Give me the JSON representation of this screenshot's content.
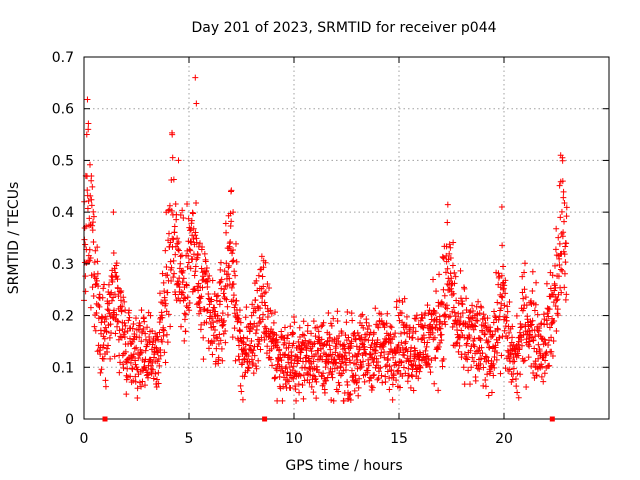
{
  "chart_data": {
    "type": "scatter",
    "title": "Day 201 of 2023, SRMTID for receiver p044",
    "xlabel": "GPS time / hours",
    "ylabel": "SRMTID / TECUs",
    "xlim": [
      0,
      25
    ],
    "ylim": [
      0,
      0.7
    ],
    "x_ticks": [
      0,
      5,
      10,
      15,
      20
    ],
    "x_tick_labels": [
      "0",
      "5",
      "10",
      "15",
      "20"
    ],
    "y_ticks": [
      0,
      0.1,
      0.2,
      0.3,
      0.4,
      0.5,
      0.6,
      0.7
    ],
    "y_tick_labels": [
      "0",
      "0.1",
      "0.2",
      "0.3",
      "0.4",
      "0.5",
      "0.6",
      "0.7"
    ],
    "grid": true,
    "marker": "plus",
    "color": "#ff0000",
    "x_range_hours": [
      0,
      23
    ],
    "profile": [
      [
        0.0,
        0.28
      ],
      [
        0.15,
        0.45
      ],
      [
        0.3,
        0.36
      ],
      [
        0.5,
        0.28
      ],
      [
        0.7,
        0.19
      ],
      [
        1.0,
        0.15
      ],
      [
        1.3,
        0.24
      ],
      [
        1.6,
        0.22
      ],
      [
        2.0,
        0.15
      ],
      [
        2.4,
        0.14
      ],
      [
        2.8,
        0.13
      ],
      [
        3.2,
        0.14
      ],
      [
        3.5,
        0.12
      ],
      [
        3.8,
        0.2
      ],
      [
        4.2,
        0.4
      ],
      [
        4.5,
        0.28
      ],
      [
        4.8,
        0.27
      ],
      [
        5.2,
        0.33
      ],
      [
        5.5,
        0.25
      ],
      [
        5.8,
        0.22
      ],
      [
        6.2,
        0.17
      ],
      [
        6.6,
        0.2
      ],
      [
        7.0,
        0.35
      ],
      [
        7.3,
        0.17
      ],
      [
        7.6,
        0.12
      ],
      [
        8.0,
        0.15
      ],
      [
        8.4,
        0.22
      ],
      [
        8.8,
        0.18
      ],
      [
        9.2,
        0.12
      ],
      [
        9.8,
        0.11
      ],
      [
        10.5,
        0.12
      ],
      [
        11.0,
        0.13
      ],
      [
        11.5,
        0.12
      ],
      [
        12.0,
        0.11
      ],
      [
        12.5,
        0.12
      ],
      [
        13.0,
        0.12
      ],
      [
        13.5,
        0.13
      ],
      [
        14.0,
        0.13
      ],
      [
        14.5,
        0.14
      ],
      [
        15.0,
        0.15
      ],
      [
        15.5,
        0.14
      ],
      [
        16.0,
        0.14
      ],
      [
        16.5,
        0.16
      ],
      [
        17.0,
        0.2
      ],
      [
        17.4,
        0.28
      ],
      [
        17.8,
        0.17
      ],
      [
        18.2,
        0.16
      ],
      [
        18.6,
        0.15
      ],
      [
        19.0,
        0.14
      ],
      [
        19.5,
        0.14
      ],
      [
        19.9,
        0.24
      ],
      [
        20.2,
        0.14
      ],
      [
        20.6,
        0.11
      ],
      [
        21.0,
        0.2
      ],
      [
        21.4,
        0.17
      ],
      [
        21.8,
        0.14
      ],
      [
        22.2,
        0.18
      ],
      [
        22.5,
        0.26
      ],
      [
        22.8,
        0.38
      ],
      [
        23.0,
        0.3
      ]
    ],
    "peaks": [
      [
        0.2,
        0.56
      ],
      [
        0.35,
        0.47
      ],
      [
        1.4,
        0.4
      ],
      [
        4.2,
        0.55
      ],
      [
        4.5,
        0.5
      ],
      [
        5.3,
        0.66
      ],
      [
        5.35,
        0.61
      ],
      [
        7.0,
        0.44
      ],
      [
        7.1,
        0.4
      ],
      [
        17.3,
        0.38
      ],
      [
        19.9,
        0.41
      ],
      [
        22.7,
        0.51
      ],
      [
        22.8,
        0.46
      ]
    ],
    "data_gaps_x": [
      1.0,
      8.6,
      22.3
    ]
  }
}
